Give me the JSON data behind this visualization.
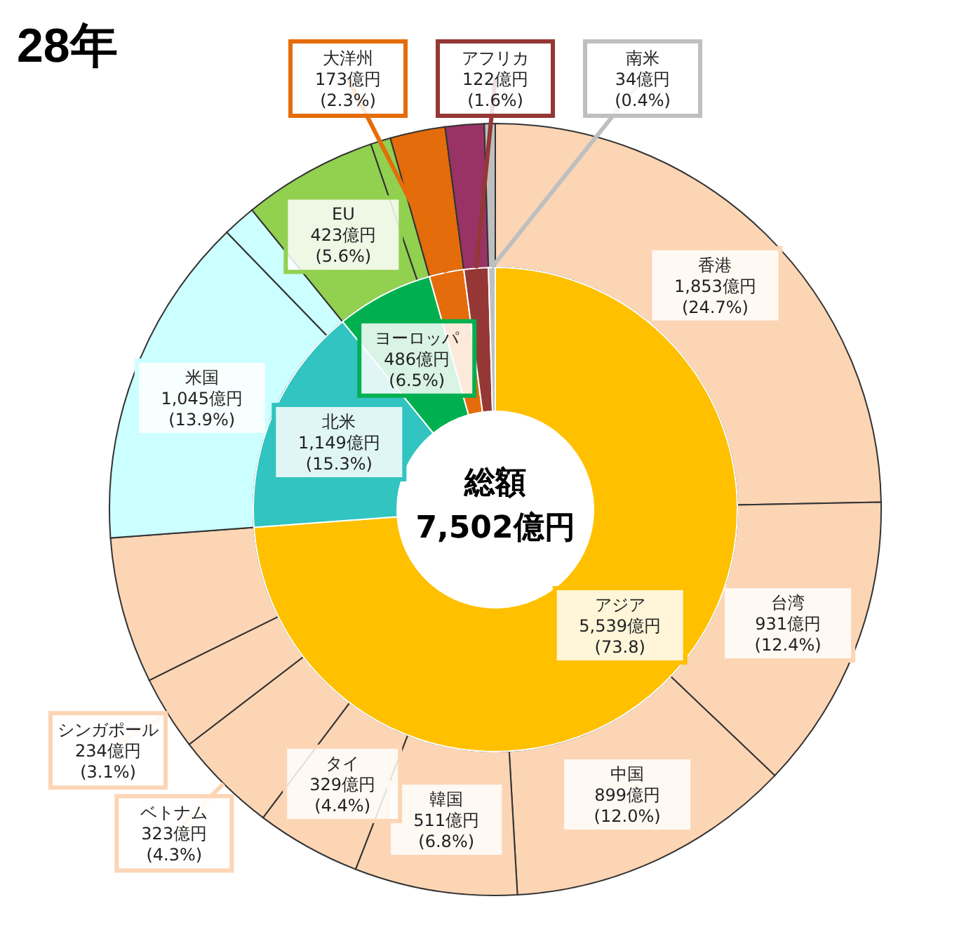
{
  "chart_data": [
    {
      "type": "donut",
      "title": "28年",
      "annotations": [
        "総額",
        "7,502億円"
      ],
      "categories": [
        "アジア",
        "北米",
        "ヨーロッパ",
        "大洋州",
        "アフリカ",
        "南米"
      ],
      "values": [
        5539,
        1149,
        486,
        173,
        122,
        34
      ],
      "colors": [
        "#ffc000",
        "#31c4c0",
        "#00b050",
        "#e46c0a",
        "#953735",
        "#bfbfbf"
      ],
      "value_labels": [
        "5,539億円\n(73.8)",
        "1,149億円\n(15.3%)",
        "486億円\n(6.5%)",
        "173億円\n(2.3%)",
        "122億円\n(1.6%)",
        "34億円\n(0.4%)"
      ]
    },
    {
      "type": "donut",
      "categories": [
        "香港",
        "台湾",
        "中国",
        "韓国",
        "タイ",
        "ベトナム",
        "シンガポール",
        null,
        "米国",
        null,
        "EU",
        null,
        null,
        null,
        null
      ],
      "values": [
        1853,
        931,
        899,
        511,
        329,
        323,
        234,
        459,
        1045,
        104,
        423,
        63,
        173,
        122,
        34
      ],
      "colors": [
        "#fcd5b5",
        "#fcd5b5",
        "#fcd5b5",
        "#fcd5b5",
        "#fcd5b5",
        "#fcd5b5",
        "#fcd5b5",
        "#fcd5b5",
        "#ccffff",
        "#ccffff",
        "#92d050",
        "#92d050",
        "#e46c0a",
        "#993366",
        "#bfbfbf"
      ],
      "value_labels": [
        "1,853億円\n(24.7%)",
        "931億円\n(12.4%)",
        "899億円\n(12.0%)",
        "511億円\n(6.8%)",
        "329億円\n(4.4%)",
        "323億円\n(4.3%)",
        "234億円\n(3.1%)",
        null,
        "1,045億円\n(13.9%)",
        null,
        "423億円\n(5.6%)",
        null,
        null,
        null,
        null
      ]
    }
  ]
}
